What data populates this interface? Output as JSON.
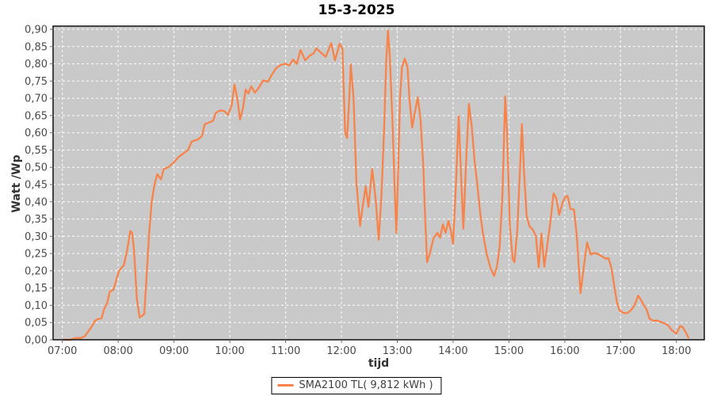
{
  "title": "15-3-2025",
  "colors": {
    "series": "#f8834a",
    "plot_background": "#c9c9c9",
    "grid": "#ffffff",
    "border": "#000000",
    "tick_text": "#4a4a4a",
    "axis_title_text": "#333333"
  },
  "legend": {
    "label": "SMA2100 TL( 9,812 kWh )"
  },
  "chart_data": {
    "type": "line",
    "title": "15-3-2025",
    "xlabel": "tijd",
    "ylabel": "Watt /Wp",
    "grid": "white-dashed",
    "legend_position": "bottom-center",
    "ylim": [
      0,
      0.9
    ],
    "xlim_minutes": [
      410,
      1110
    ],
    "y_ticks": [
      {
        "label": "0,00",
        "value": 0.0
      },
      {
        "label": "0,05",
        "value": 0.05
      },
      {
        "label": "0,10",
        "value": 0.1
      },
      {
        "label": "0,15",
        "value": 0.15
      },
      {
        "label": "0,20",
        "value": 0.2
      },
      {
        "label": "0,25",
        "value": 0.25
      },
      {
        "label": "0,30",
        "value": 0.3
      },
      {
        "label": "0,35",
        "value": 0.35
      },
      {
        "label": "0,40",
        "value": 0.4
      },
      {
        "label": "0,45",
        "value": 0.45
      },
      {
        "label": "0,50",
        "value": 0.5
      },
      {
        "label": "0,55",
        "value": 0.55
      },
      {
        "label": "0,60",
        "value": 0.6
      },
      {
        "label": "0,65",
        "value": 0.65
      },
      {
        "label": "0,70",
        "value": 0.7
      },
      {
        "label": "0,75",
        "value": 0.75
      },
      {
        "label": "0,80",
        "value": 0.8
      },
      {
        "label": "0,85",
        "value": 0.85
      },
      {
        "label": "0,90",
        "value": 0.9
      }
    ],
    "x_ticks": [
      {
        "label": "07:00",
        "minutes": 420
      },
      {
        "label": "08:00",
        "minutes": 480
      },
      {
        "label": "09:00",
        "minutes": 540
      },
      {
        "label": "10:00",
        "minutes": 600
      },
      {
        "label": "11:00",
        "minutes": 660
      },
      {
        "label": "12:00",
        "minutes": 720
      },
      {
        "label": "13:00",
        "minutes": 780
      },
      {
        "label": "14:00",
        "minutes": 840
      },
      {
        "label": "15:00",
        "minutes": 900
      },
      {
        "label": "16:00",
        "minutes": 960
      },
      {
        "label": "17:00",
        "minutes": 1020
      },
      {
        "label": "18:00",
        "minutes": 1080
      }
    ],
    "series": [
      {
        "name": "SMA2100 TL( 9,812 kWh )",
        "color": "#f8834a",
        "points": [
          [
            421,
            0
          ],
          [
            428,
            0
          ],
          [
            434,
            0.005
          ],
          [
            440,
            0.005
          ],
          [
            444,
            0.01
          ],
          [
            448,
            0.025
          ],
          [
            452,
            0.04
          ],
          [
            455,
            0.055
          ],
          [
            458,
            0.06
          ],
          [
            462,
            0.062
          ],
          [
            465,
            0.09
          ],
          [
            468,
            0.105
          ],
          [
            471,
            0.14
          ],
          [
            475,
            0.145
          ],
          [
            478,
            0.175
          ],
          [
            481,
            0.2
          ],
          [
            484,
            0.21
          ],
          [
            486,
            0.215
          ],
          [
            488,
            0.24
          ],
          [
            490,
            0.265
          ],
          [
            493,
            0.315
          ],
          [
            495,
            0.31
          ],
          [
            497,
            0.26
          ],
          [
            500,
            0.12
          ],
          [
            503,
            0.065
          ],
          [
            506,
            0.07
          ],
          [
            508,
            0.075
          ],
          [
            510,
            0.16
          ],
          [
            513,
            0.3
          ],
          [
            516,
            0.4
          ],
          [
            519,
            0.45
          ],
          [
            522,
            0.48
          ],
          [
            526,
            0.465
          ],
          [
            529,
            0.495
          ],
          [
            534,
            0.5
          ],
          [
            540,
            0.515
          ],
          [
            545,
            0.53
          ],
          [
            550,
            0.54
          ],
          [
            555,
            0.55
          ],
          [
            559,
            0.575
          ],
          [
            565,
            0.58
          ],
          [
            570,
            0.59
          ],
          [
            573,
            0.625
          ],
          [
            578,
            0.63
          ],
          [
            582,
            0.635
          ],
          [
            585,
            0.658
          ],
          [
            590,
            0.665
          ],
          [
            594,
            0.663
          ],
          [
            598,
            0.652
          ],
          [
            602,
            0.68
          ],
          [
            605,
            0.74
          ],
          [
            608,
            0.7
          ],
          [
            611,
            0.638
          ],
          [
            614,
            0.67
          ],
          [
            617,
            0.725
          ],
          [
            620,
            0.714
          ],
          [
            623,
            0.735
          ],
          [
            627,
            0.716
          ],
          [
            631,
            0.73
          ],
          [
            636,
            0.752
          ],
          [
            641,
            0.748
          ],
          [
            645,
            0.768
          ],
          [
            650,
            0.788
          ],
          [
            655,
            0.797
          ],
          [
            660,
            0.8
          ],
          [
            664,
            0.795
          ],
          [
            668,
            0.812
          ],
          [
            672,
            0.8
          ],
          [
            676,
            0.84
          ],
          [
            681,
            0.81
          ],
          [
            686,
            0.824
          ],
          [
            690,
            0.83
          ],
          [
            693,
            0.845
          ],
          [
            698,
            0.832
          ],
          [
            703,
            0.82
          ],
          [
            709,
            0.86
          ],
          [
            713,
            0.81
          ],
          [
            718,
            0.858
          ],
          [
            721,
            0.845
          ],
          [
            724,
            0.6
          ],
          [
            726,
            0.585
          ],
          [
            728,
            0.68
          ],
          [
            730,
            0.798
          ],
          [
            733,
            0.7
          ],
          [
            736,
            0.46
          ],
          [
            740,
            0.33
          ],
          [
            743,
            0.39
          ],
          [
            746,
            0.445
          ],
          [
            749,
            0.385
          ],
          [
            753,
            0.495
          ],
          [
            757,
            0.4
          ],
          [
            760,
            0.29
          ],
          [
            763,
            0.42
          ],
          [
            766,
            0.62
          ],
          [
            768,
            0.8
          ],
          [
            770,
            0.897
          ],
          [
            772,
            0.82
          ],
          [
            775,
            0.62
          ],
          [
            777,
            0.45
          ],
          [
            779,
            0.31
          ],
          [
            781,
            0.5
          ],
          [
            783,
            0.7
          ],
          [
            785,
            0.79
          ],
          [
            788,
            0.815
          ],
          [
            791,
            0.79
          ],
          [
            793,
            0.7
          ],
          [
            796,
            0.615
          ],
          [
            799,
            0.66
          ],
          [
            802,
            0.703
          ],
          [
            805,
            0.64
          ],
          [
            808,
            0.5
          ],
          [
            810,
            0.35
          ],
          [
            812,
            0.225
          ],
          [
            815,
            0.25
          ],
          [
            819,
            0.295
          ],
          [
            823,
            0.31
          ],
          [
            826,
            0.296
          ],
          [
            829,
            0.335
          ],
          [
            832,
            0.31
          ],
          [
            835,
            0.345
          ],
          [
            838,
            0.31
          ],
          [
            840,
            0.278
          ],
          [
            843,
            0.45
          ],
          [
            846,
            0.648
          ],
          [
            849,
            0.45
          ],
          [
            851,
            0.322
          ],
          [
            854,
            0.52
          ],
          [
            857,
            0.684
          ],
          [
            860,
            0.62
          ],
          [
            863,
            0.52
          ],
          [
            866,
            0.45
          ],
          [
            869,
            0.37
          ],
          [
            872,
            0.31
          ],
          [
            876,
            0.25
          ],
          [
            880,
            0.21
          ],
          [
            884,
            0.185
          ],
          [
            887,
            0.21
          ],
          [
            890,
            0.27
          ],
          [
            893,
            0.42
          ],
          [
            896,
            0.705
          ],
          [
            898,
            0.6
          ],
          [
            901,
            0.33
          ],
          [
            904,
            0.235
          ],
          [
            906,
            0.225
          ],
          [
            909,
            0.32
          ],
          [
            912,
            0.5
          ],
          [
            914,
            0.625
          ],
          [
            916,
            0.5
          ],
          [
            919,
            0.36
          ],
          [
            922,
            0.33
          ],
          [
            926,
            0.318
          ],
          [
            929,
            0.3
          ],
          [
            932,
            0.21
          ],
          [
            935,
            0.308
          ],
          [
            938,
            0.212
          ],
          [
            941,
            0.27
          ],
          [
            944,
            0.33
          ],
          [
            948,
            0.424
          ],
          [
            951,
            0.41
          ],
          [
            954,
            0.362
          ],
          [
            958,
            0.4
          ],
          [
            961,
            0.415
          ],
          [
            963,
            0.417
          ],
          [
            966,
            0.38
          ],
          [
            970,
            0.377
          ],
          [
            973,
            0.3
          ],
          [
            977,
            0.135
          ],
          [
            980,
            0.2
          ],
          [
            984,
            0.282
          ],
          [
            988,
            0.247
          ],
          [
            992,
            0.252
          ],
          [
            996,
            0.248
          ],
          [
            1000,
            0.242
          ],
          [
            1004,
            0.235
          ],
          [
            1007,
            0.237
          ],
          [
            1010,
            0.21
          ],
          [
            1013,
            0.16
          ],
          [
            1016,
            0.11
          ],
          [
            1019,
            0.085
          ],
          [
            1023,
            0.078
          ],
          [
            1027,
            0.077
          ],
          [
            1031,
            0.085
          ],
          [
            1035,
            0.1
          ],
          [
            1039,
            0.128
          ],
          [
            1042,
            0.115
          ],
          [
            1045,
            0.1
          ],
          [
            1048,
            0.088
          ],
          [
            1051,
            0.062
          ],
          [
            1055,
            0.055
          ],
          [
            1059,
            0.056
          ],
          [
            1063,
            0.052
          ],
          [
            1067,
            0.048
          ],
          [
            1071,
            0.042
          ],
          [
            1075,
            0.028
          ],
          [
            1080,
            0.018
          ],
          [
            1084,
            0.04
          ],
          [
            1087,
            0.036
          ],
          [
            1090,
            0.022
          ],
          [
            1093,
            0.006
          ]
        ]
      }
    ]
  }
}
